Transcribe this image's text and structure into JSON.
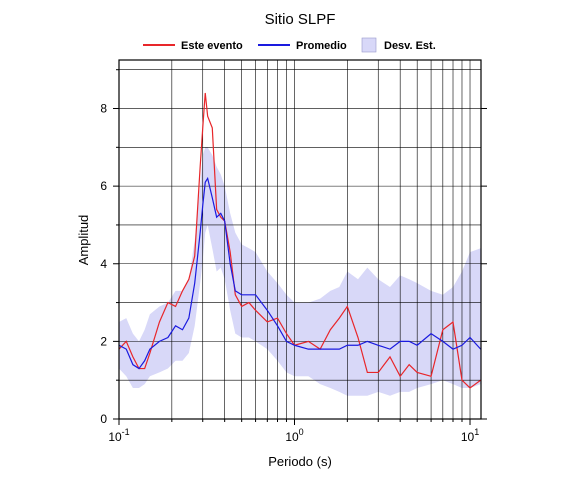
{
  "chart_data": {
    "type": "line",
    "title": "Sitio SLPF",
    "xlabel": "Periodo (s)",
    "ylabel": "Amplitud",
    "xscale": "log",
    "xlim": [
      0.1,
      11.55
    ],
    "ylim": [
      0,
      9.25
    ],
    "xticks": [
      {
        "value": 0.1,
        "label": "10",
        "exponent": "-1"
      },
      {
        "value": 1,
        "label": "10",
        "exponent": "0"
      },
      {
        "value": 10,
        "label": "10",
        "exponent": "1"
      }
    ],
    "x_minor_ticks": [
      0.2,
      0.3,
      0.4,
      0.5,
      0.6,
      0.7,
      0.8,
      0.9,
      2,
      3,
      4,
      5,
      6,
      7,
      8,
      9
    ],
    "yticks": [
      0,
      2,
      4,
      6,
      8
    ],
    "y_minor_ticks": [
      1,
      3,
      5,
      7,
      9
    ],
    "grid": true,
    "x": [
      0.1,
      0.11,
      0.12,
      0.13,
      0.14,
      0.15,
      0.17,
      0.19,
      0.21,
      0.23,
      0.25,
      0.27,
      0.29,
      0.3,
      0.31,
      0.32,
      0.34,
      0.36,
      0.38,
      0.4,
      0.43,
      0.46,
      0.5,
      0.55,
      0.6,
      0.7,
      0.8,
      0.9,
      1.0,
      1.2,
      1.4,
      1.6,
      1.8,
      2.0,
      2.3,
      2.6,
      3.0,
      3.5,
      4,
      4.5,
      5,
      6,
      7,
      8,
      9,
      10,
      11.5
    ],
    "series": [
      {
        "name": "Este evento",
        "color": "#e8262a",
        "values": [
          1.8,
          2.0,
          1.6,
          1.3,
          1.3,
          1.7,
          2.5,
          3.0,
          2.9,
          3.3,
          3.6,
          4.2,
          6.5,
          7.5,
          8.4,
          7.8,
          7.5,
          5.4,
          5.2,
          5.1,
          4.3,
          3.2,
          2.9,
          3.0,
          2.8,
          2.5,
          2.6,
          2.2,
          1.9,
          2.0,
          1.8,
          2.3,
          2.6,
          2.9,
          2.1,
          1.2,
          1.2,
          1.6,
          1.1,
          1.4,
          1.2,
          1.1,
          2.3,
          2.5,
          1.0,
          0.8,
          1.0
        ]
      },
      {
        "name": "Promedio",
        "color": "#1a1adf",
        "values": [
          1.9,
          1.8,
          1.4,
          1.3,
          1.5,
          1.8,
          2.0,
          2.1,
          2.4,
          2.3,
          2.6,
          3.5,
          4.8,
          5.5,
          6.1,
          6.2,
          5.7,
          5.2,
          5.3,
          5.1,
          4.0,
          3.3,
          3.2,
          3.2,
          3.2,
          2.8,
          2.4,
          2.0,
          1.9,
          1.8,
          1.8,
          1.8,
          1.8,
          1.9,
          1.9,
          2.0,
          1.9,
          1.8,
          2.0,
          2.0,
          1.9,
          2.2,
          2.0,
          1.8,
          1.9,
          2.1,
          1.8
        ]
      },
      {
        "name": "Desv. Est.",
        "color": "#d8d8f8",
        "band": true,
        "upper": [
          2.5,
          2.6,
          2.2,
          2.0,
          2.3,
          2.7,
          2.9,
          3.0,
          3.3,
          3.3,
          3.6,
          4.6,
          6.0,
          6.8,
          7.0,
          7.0,
          6.8,
          6.5,
          6.3,
          6.0,
          5.3,
          4.8,
          4.5,
          4.4,
          4.3,
          3.8,
          3.5,
          3.2,
          3.0,
          3.0,
          3.1,
          3.3,
          3.4,
          3.8,
          3.6,
          3.9,
          3.6,
          3.4,
          3.7,
          3.6,
          3.5,
          3.3,
          3.2,
          3.4,
          3.8,
          4.3,
          4.4
        ],
        "lower": [
          1.3,
          1.1,
          0.8,
          0.8,
          0.9,
          1.1,
          1.2,
          1.3,
          1.5,
          1.5,
          1.7,
          2.4,
          3.5,
          4.1,
          4.8,
          5.0,
          4.4,
          3.8,
          3.9,
          3.6,
          2.8,
          2.2,
          2.1,
          2.1,
          2.0,
          1.8,
          1.5,
          1.2,
          1.1,
          1.1,
          0.9,
          0.8,
          0.7,
          0.6,
          0.6,
          0.6,
          0.7,
          0.6,
          0.7,
          0.7,
          0.8,
          0.9,
          1.0,
          0.9,
          0.8,
          0.8,
          0.9
        ]
      }
    ]
  }
}
